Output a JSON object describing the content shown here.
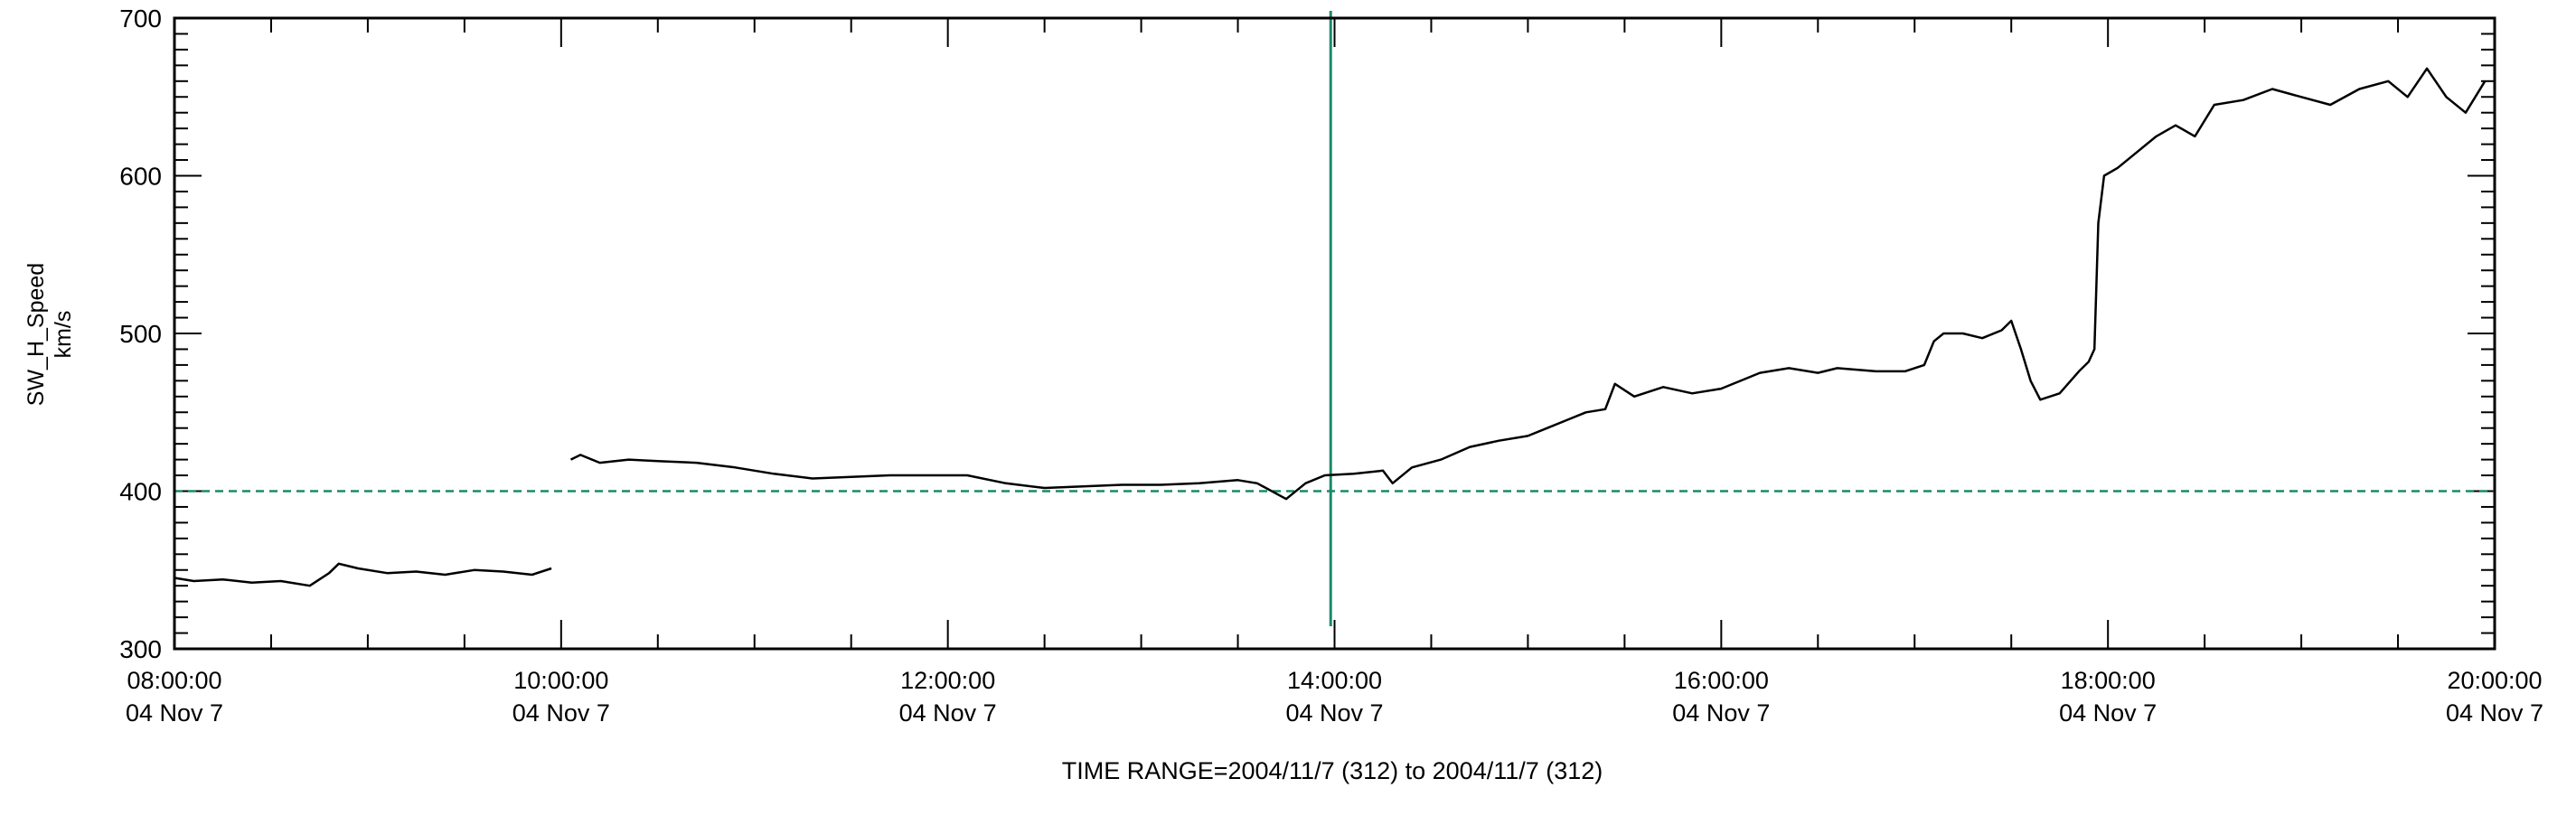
{
  "chart_data": {
    "type": "line",
    "ylabel": "SW_H_Speed",
    "yunits": "km/s",
    "ylim": [
      300,
      700
    ],
    "yticks": [
      300,
      400,
      500,
      600,
      700
    ],
    "y_minor_per_major": 10,
    "xlim_hours": [
      8,
      20
    ],
    "xticks": [
      {
        "hour": 8,
        "time": "08:00:00",
        "date": "04 Nov  7"
      },
      {
        "hour": 10,
        "time": "10:00:00",
        "date": "04 Nov  7"
      },
      {
        "hour": 12,
        "time": "12:00:00",
        "date": "04 Nov  7"
      },
      {
        "hour": 14,
        "time": "14:00:00",
        "date": "04 Nov  7"
      },
      {
        "hour": 16,
        "time": "16:00:00",
        "date": "04 Nov  7"
      },
      {
        "hour": 18,
        "time": "18:00:00",
        "date": "04 Nov  7"
      },
      {
        "hour": 20,
        "time": "20:00:00",
        "date": "04 Nov  7"
      }
    ],
    "x_minor_per_major": 4,
    "xlabel": "TIME RANGE=2004/11/7 (312) to 2004/11/7 (312)",
    "reference_line": {
      "y": 400,
      "style": "dashed",
      "color": "#1a8a6a"
    },
    "vertical_marker": {
      "hour": 13.98,
      "color": "#1a8a6a"
    },
    "series": [
      {
        "color": "#000000",
        "segments": [
          [
            [
              8.0,
              345
            ],
            [
              8.1,
              343
            ],
            [
              8.25,
              344
            ],
            [
              8.4,
              342
            ],
            [
              8.55,
              343
            ],
            [
              8.7,
              340
            ],
            [
              8.8,
              348
            ],
            [
              8.85,
              354
            ],
            [
              8.95,
              351
            ],
            [
              9.1,
              348
            ],
            [
              9.25,
              349
            ],
            [
              9.4,
              347
            ],
            [
              9.55,
              350
            ],
            [
              9.7,
              349
            ],
            [
              9.85,
              347
            ],
            [
              9.95,
              351
            ]
          ],
          [
            [
              10.05,
              420
            ],
            [
              10.1,
              423
            ],
            [
              10.2,
              418
            ],
            [
              10.35,
              420
            ],
            [
              10.5,
              419
            ],
            [
              10.7,
              418
            ],
            [
              10.9,
              415
            ],
            [
              11.1,
              411
            ],
            [
              11.3,
              408
            ],
            [
              11.5,
              409
            ],
            [
              11.7,
              410
            ],
            [
              11.9,
              410
            ],
            [
              12.1,
              410
            ],
            [
              12.3,
              405
            ],
            [
              12.5,
              402
            ],
            [
              12.7,
              403
            ],
            [
              12.9,
              404
            ],
            [
              13.1,
              404
            ],
            [
              13.3,
              405
            ],
            [
              13.5,
              407
            ],
            [
              13.6,
              405
            ],
            [
              13.75,
              395
            ],
            [
              13.85,
              405
            ],
            [
              13.95,
              410
            ],
            [
              14.1,
              411
            ],
            [
              14.25,
              413
            ],
            [
              14.3,
              405
            ],
            [
              14.4,
              415
            ],
            [
              14.55,
              420
            ],
            [
              14.7,
              428
            ],
            [
              14.85,
              432
            ],
            [
              15.0,
              435
            ],
            [
              15.1,
              440
            ],
            [
              15.2,
              445
            ],
            [
              15.3,
              450
            ],
            [
              15.4,
              452
            ],
            [
              15.45,
              468
            ],
            [
              15.55,
              460
            ],
            [
              15.7,
              466
            ],
            [
              15.85,
              462
            ],
            [
              16.0,
              465
            ],
            [
              16.1,
              470
            ],
            [
              16.2,
              475
            ],
            [
              16.35,
              478
            ],
            [
              16.5,
              475
            ],
            [
              16.6,
              478
            ],
            [
              16.8,
              476
            ],
            [
              16.95,
              476
            ],
            [
              17.05,
              480
            ],
            [
              17.1,
              495
            ],
            [
              17.15,
              500
            ],
            [
              17.25,
              500
            ],
            [
              17.35,
              497
            ],
            [
              17.45,
              502
            ],
            [
              17.5,
              508
            ],
            [
              17.55,
              490
            ],
            [
              17.6,
              470
            ],
            [
              17.65,
              458
            ],
            [
              17.75,
              462
            ],
            [
              17.85,
              476
            ],
            [
              17.9,
              482
            ],
            [
              17.93,
              490
            ],
            [
              17.95,
              570
            ],
            [
              17.98,
              600
            ],
            [
              18.05,
              605
            ],
            [
              18.15,
              615
            ],
            [
              18.25,
              625
            ],
            [
              18.35,
              632
            ],
            [
              18.45,
              625
            ],
            [
              18.55,
              645
            ],
            [
              18.7,
              648
            ],
            [
              18.85,
              655
            ],
            [
              19.0,
              650
            ],
            [
              19.15,
              645
            ],
            [
              19.3,
              655
            ],
            [
              19.45,
              660
            ],
            [
              19.55,
              650
            ],
            [
              19.65,
              668
            ],
            [
              19.75,
              650
            ],
            [
              19.85,
              640
            ],
            [
              19.95,
              660
            ]
          ]
        ]
      }
    ]
  }
}
